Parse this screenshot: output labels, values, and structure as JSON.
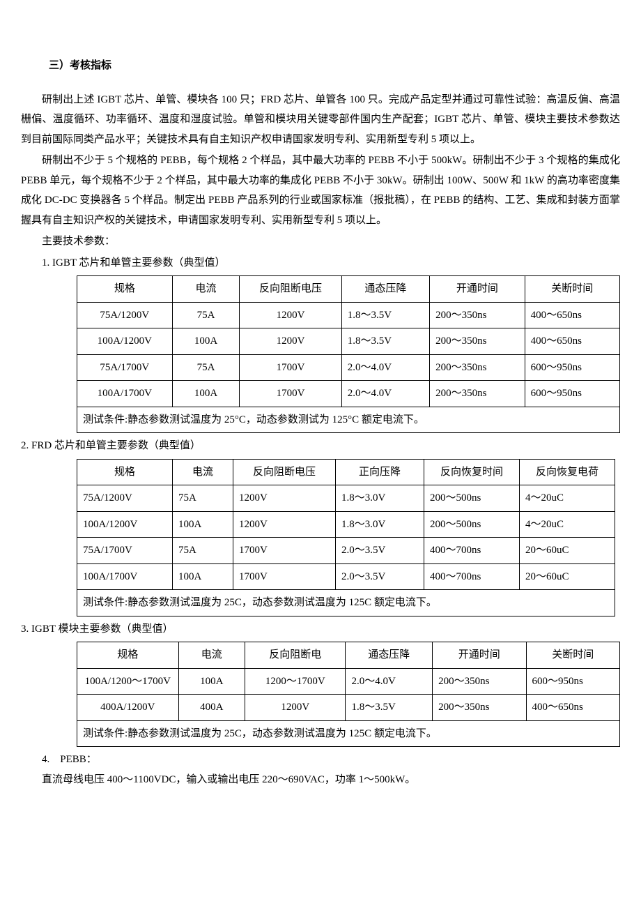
{
  "section_title": "三）考核指标",
  "para1": "研制出上述 IGBT 芯片、单管、模块各 100 只；FRD 芯片、单管各 100 只。完成产品定型并通过可靠性试验：高温反偏、高温栅偏、温度循环、功率循环、温度和湿度试验。单管和模块用关键零部件国内生产配套；IGBT 芯片、单管、模块主要技术参数达到目前国际同类产品水平；关键技术具有自主知识产权申请国家发明专利、实用新型专利 5 项以上。",
  "para2": "研制出不少于 5 个规格的 PEBB，每个规格 2 个样品，其中最大功率的 PEBB 不小于 500kW。研制出不少于 3 个规格的集成化 PEBB 单元，每个规格不少于 2 个样品，其中最大功率的集成化 PEBB 不小于 30kW。研制出 100W、500W 和 1kW 的高功率密度集成化 DC-DC 变换器各 5 个样品。制定出 PEBB 产品系列的行业或国家标准（报批稿），在 PEBB 的结构、工艺、集成和封装方面掌握具有自主知识产权的关键技术，申请国家发明专利、实用新型专利 5 项以上。",
  "main_params_label": "主要技术参数：",
  "t1": {
    "label": "1. IGBT 芯片和单管主要参数（典型值）",
    "headers": [
      "规格",
      "电流",
      "反向阻断电压",
      "通态压降",
      "开通时间",
      "关断时间"
    ],
    "rows": [
      [
        "75A/1200V",
        "75A",
        "1200V",
        "1.8〜3.5V",
        "200〜350ns",
        "400〜650ns"
      ],
      [
        "100A/1200V",
        "100A",
        "1200V",
        "1.8〜3.5V",
        "200〜350ns",
        "400〜650ns"
      ],
      [
        "75A/1700V",
        "75A",
        "1700V",
        "2.0〜4.0V",
        "200〜350ns",
        "600〜950ns"
      ],
      [
        "100A/1700V",
        "100A",
        "1700V",
        "2.0〜4.0V",
        "200〜350ns",
        "600〜950ns"
      ]
    ],
    "footer": "测试条件:静态参数测试温度为 25°C，动态参数测试为 125°C 额定电流下。",
    "col_widths": [
      "120",
      "80",
      "130",
      "110",
      "120",
      "120"
    ]
  },
  "t2": {
    "label": "2. FRD 芯片和单管主要参数（典型值）",
    "headers": [
      "规格",
      "电流",
      "反向阻断电压",
      "正向压降",
      "反向恢复时间",
      "反向恢复电荷"
    ],
    "rows": [
      [
        "75A/1200V",
        "75A",
        "1200V",
        "1.8〜3.0V",
        "200〜500ns",
        "4〜20uC"
      ],
      [
        "100A/1200V",
        "100A",
        "1200V",
        "1.8〜3.0V",
        "200〜500ns",
        "4〜20uC"
      ],
      [
        "75A/1700V",
        "75A",
        "1700V",
        "2.0〜3.5V",
        "400〜700ns",
        "20〜60uC"
      ],
      [
        "100A/1700V",
        "100A",
        "1700V",
        "2.0〜3.5V",
        "400〜700ns",
        "20〜60uC"
      ]
    ],
    "footer": "测试条件:静态参数测试温度为 25C，动态参数测试温度为 125C 额定电流下。",
    "col_widths": [
      "120",
      "70",
      "130",
      "110",
      "120",
      "120"
    ]
  },
  "t3": {
    "label": "3. IGBT 模块主要参数（典型值）",
    "headers": [
      "规格",
      "电流",
      "反向阻断电",
      "通态压降",
      "开通时间",
      "关断时间"
    ],
    "rows": [
      [
        "100A/1200〜1700V",
        "100A",
        "1200〜1700V",
        "2.0〜4.0V",
        "200〜350ns",
        "600〜950ns"
      ],
      [
        "400A/1200V",
        "400A",
        "1200V",
        "1.8〜3.5V",
        "200〜350ns",
        "400〜650ns"
      ]
    ],
    "footer": "测试条件:静态参数测试温度为 25C，动态参数测试温度为 125C 额定电流下。",
    "col_widths": [
      "130",
      "80",
      "130",
      "110",
      "120",
      "120"
    ]
  },
  "pebb": {
    "label": "4.　PEBB：",
    "content": "直流母线电压 400〜1100VDC，输入或输出电压 220〜690VAC，功率 1〜500kW。"
  }
}
